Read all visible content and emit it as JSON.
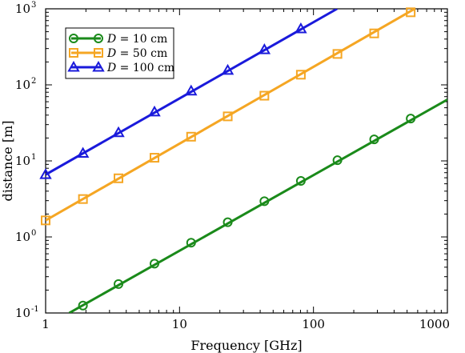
{
  "chart_data": {
    "type": "line",
    "x_scale": "log",
    "y_scale": "log",
    "xlim": [
      1,
      1000
    ],
    "ylim": [
      0.1,
      1000
    ],
    "xlabel": "Frequency [GHz]",
    "ylabel": "distance [m]",
    "x_ticks": [
      {
        "value": 1,
        "mantissa": "1",
        "exp": ""
      },
      {
        "value": 10,
        "mantissa": "10",
        "exp": ""
      },
      {
        "value": 100,
        "mantissa": "100",
        "exp": ""
      },
      {
        "value": 1000,
        "mantissa": "1000",
        "exp": ""
      }
    ],
    "y_ticks": [
      {
        "value": 0.1,
        "mantissa": "10",
        "exp": "-1"
      },
      {
        "value": 1,
        "mantissa": "10",
        "exp": "0"
      },
      {
        "value": 10,
        "mantissa": "10",
        "exp": "1"
      },
      {
        "value": 100,
        "mantissa": "10",
        "exp": "2"
      },
      {
        "value": 1000,
        "mantissa": "10",
        "exp": "3"
      }
    ],
    "legend_position": "top-left",
    "series": [
      {
        "name": "D = 10 cm",
        "legend_var": "D",
        "legend_rest": " = 10 cm",
        "marker": "circle",
        "color": "#1a8a1a",
        "line_x": [
          1.5,
          1000
        ],
        "line_y": [
          0.1,
          64
        ],
        "x": [
          1.9,
          3.5,
          6.5,
          12.2,
          22.9,
          43,
          80.5,
          151,
          284,
          532
        ],
        "y": [
          0.125,
          0.24,
          0.445,
          0.84,
          1.56,
          2.95,
          5.45,
          10.2,
          19.2,
          36
        ]
      },
      {
        "name": "D = 50 cm",
        "legend_var": "D",
        "legend_rest": " = 50 cm",
        "marker": "square",
        "color": "#f5a623",
        "line_x": [
          1,
          570
        ],
        "line_y": [
          1.65,
          1000
        ],
        "x": [
          1,
          1.9,
          3.5,
          6.5,
          12.2,
          22.9,
          43,
          80.5,
          151,
          284,
          532
        ],
        "y": [
          1.65,
          3.15,
          5.9,
          11,
          20.8,
          38.5,
          72,
          136,
          255,
          475,
          900
        ]
      },
      {
        "name": "D = 100 cm",
        "legend_var": "D",
        "legend_rest": " = 100 cm",
        "marker": "triangle",
        "color": "#1a1adb",
        "line_x": [
          1,
          150
        ],
        "line_y": [
          6.6,
          1000
        ],
        "x": [
          1,
          1.9,
          3.5,
          6.5,
          12.2,
          22.9,
          43,
          80.5
        ],
        "y": [
          6.6,
          12.6,
          23.5,
          44,
          83,
          155,
          290,
          545
        ]
      }
    ]
  }
}
